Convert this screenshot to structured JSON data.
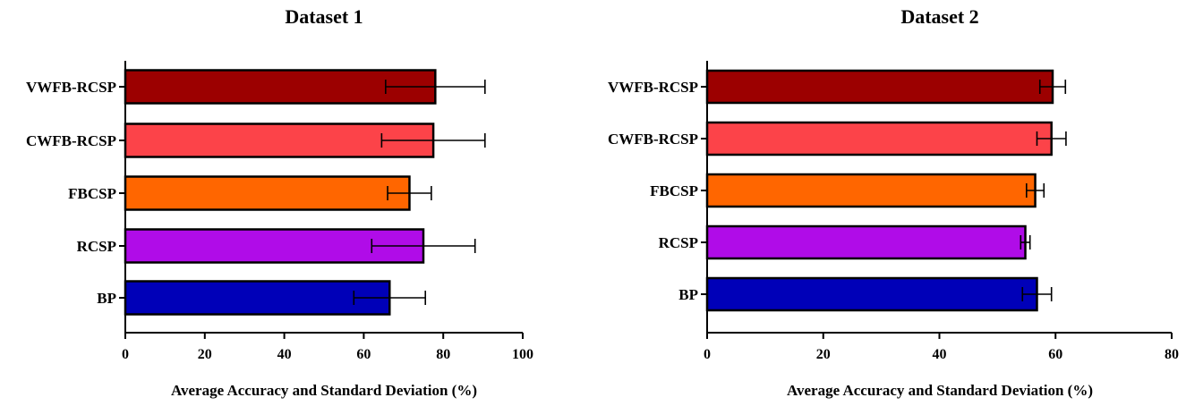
{
  "chart_data": [
    {
      "type": "bar",
      "orientation": "horizontal",
      "title": "Dataset 1",
      "xlabel": "Average Accuracy and Standard Deviation (%)",
      "ylabel": "",
      "xlim": [
        0,
        100
      ],
      "xticks": [
        0,
        20,
        40,
        60,
        80,
        100
      ],
      "categories": [
        "VWFB-RCSP",
        "CWFB-RCSP",
        "FBCSP",
        "RCSP",
        "BP"
      ],
      "values": [
        78,
        77.5,
        71.5,
        75,
        66.5
      ],
      "errors": [
        12.5,
        13,
        5.5,
        13,
        9
      ],
      "colors": [
        "#9c0000",
        "#fc4349",
        "#ff6600",
        "#b00ce8",
        "#0000b8"
      ]
    },
    {
      "type": "bar",
      "orientation": "horizontal",
      "title": "Dataset 2",
      "xlabel": "Average Accuracy and Standard Deviation (%)",
      "ylabel": "",
      "xlim": [
        0,
        80
      ],
      "xticks": [
        0,
        20,
        40,
        60,
        80
      ],
      "categories": [
        "VWFB-RCSP",
        "CWFB-RCSP",
        "FBCSP",
        "RCSP",
        "BP"
      ],
      "values": [
        59.5,
        59.3,
        56.5,
        54.8,
        56.8
      ],
      "errors": [
        2.2,
        2.5,
        1.5,
        0.8,
        2.5
      ],
      "colors": [
        "#9c0000",
        "#fc4349",
        "#ff6600",
        "#b00ce8",
        "#0000b8"
      ]
    }
  ]
}
